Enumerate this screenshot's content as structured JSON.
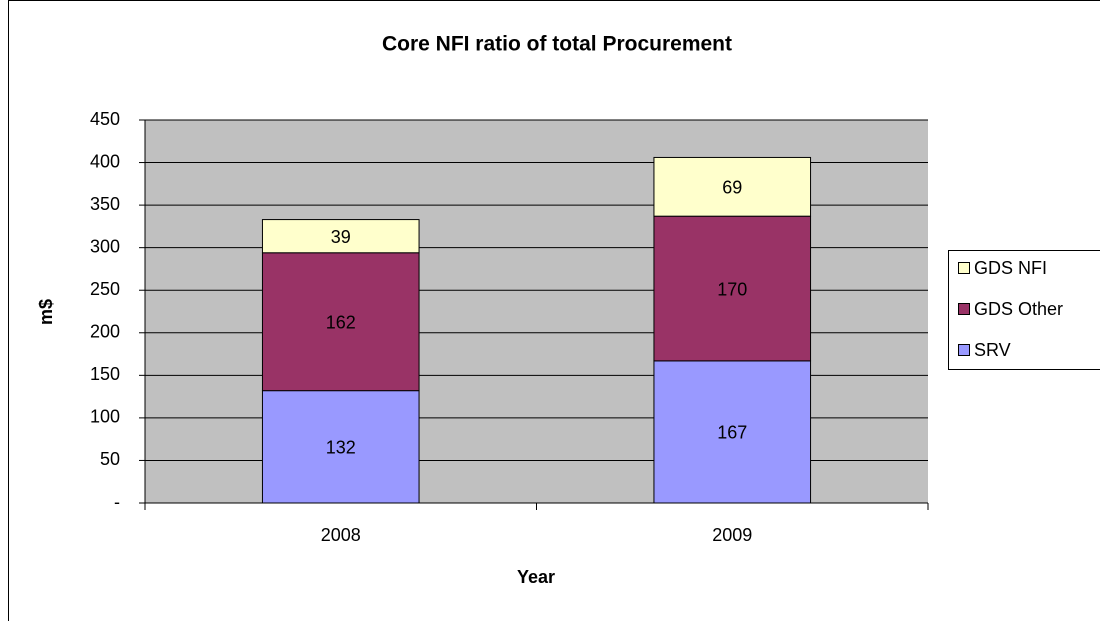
{
  "chart_data": {
    "type": "stacked_bar",
    "title": "Core NFI ratio of total Procurement",
    "x_label": "Year",
    "y_label": "m$",
    "categories": [
      "2008",
      "2009"
    ],
    "series": [
      {
        "name": "SRV",
        "color": "#9999ff",
        "values": [
          132,
          167
        ]
      },
      {
        "name": "GDS Other",
        "color": "#993366",
        "values": [
          162,
          170
        ]
      },
      {
        "name": "GDS NFI",
        "color": "#ffffcc",
        "values": [
          39,
          69
        ]
      }
    ],
    "ylim": [
      0,
      450
    ],
    "yticks": [
      {
        "value": 0,
        "label": "-"
      },
      50,
      100,
      150,
      200,
      250,
      300,
      350,
      400,
      450
    ],
    "grid": true,
    "legend": "right"
  }
}
